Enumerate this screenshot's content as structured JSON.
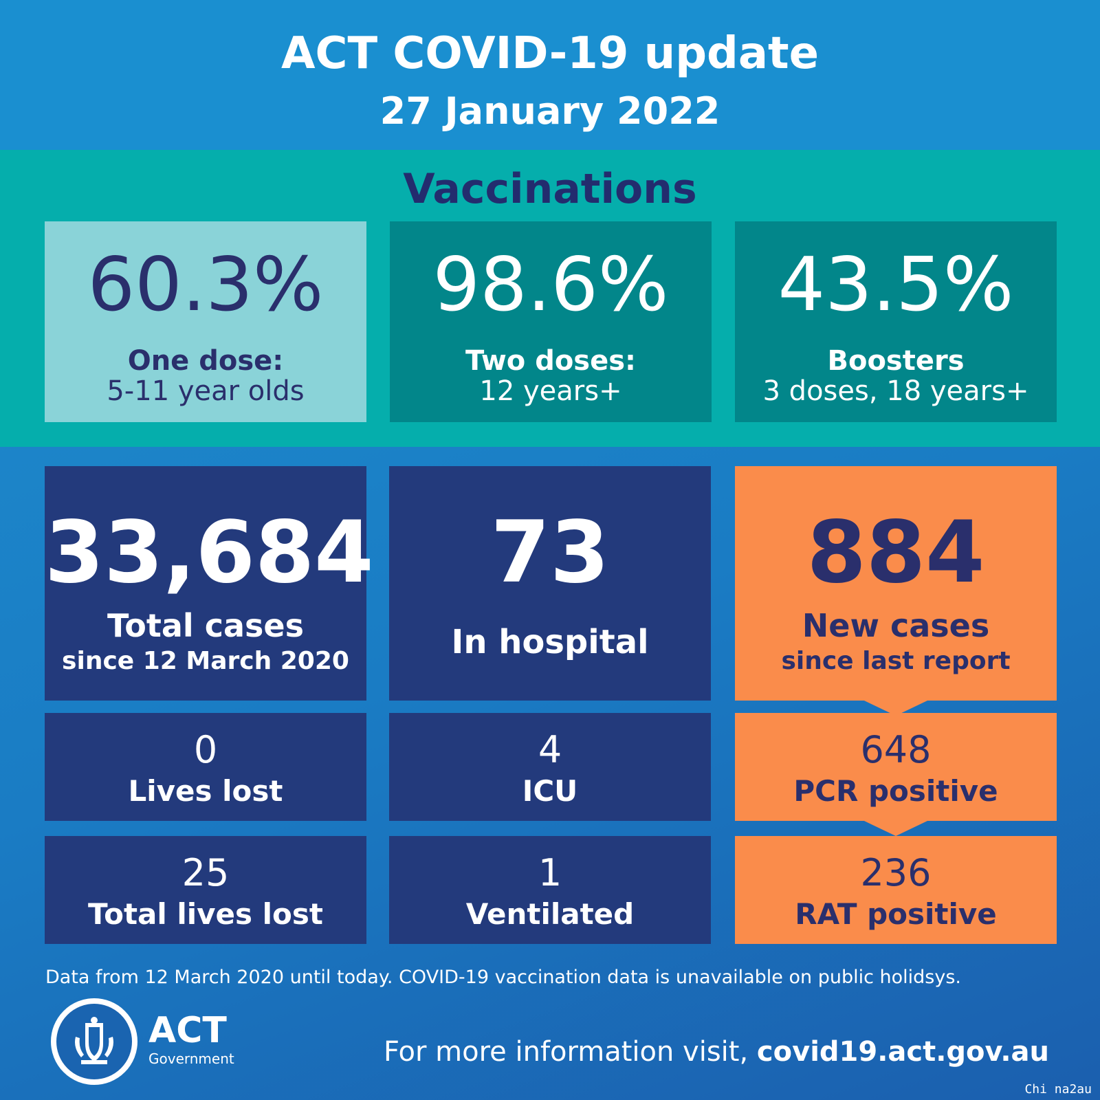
{
  "header": {
    "title": "ACT COVID-19 update",
    "date": "27 January 2022"
  },
  "vaccinations": {
    "heading": "Vaccinations",
    "cards": [
      {
        "value": "60.3%",
        "line1": "One dose:",
        "line2": "5-11 year olds"
      },
      {
        "value": "98.6%",
        "line1": "Two doses:",
        "line2": "12 years+"
      },
      {
        "value": "43.5%",
        "line1": "Boosters",
        "line2": "3 doses, 18 years+"
      }
    ]
  },
  "stats": {
    "total_cases": {
      "value": "33,684",
      "line1": "Total cases",
      "line2": "since 12 March 2020"
    },
    "in_hospital": {
      "value": "73",
      "label": "In hospital"
    },
    "new_cases": {
      "value": "884",
      "line1": "New cases",
      "line2": "since last report"
    },
    "lives_lost": {
      "value": "0",
      "label": "Lives lost"
    },
    "icu": {
      "value": "4",
      "label": "ICU"
    },
    "pcr_positive": {
      "value": "648",
      "label": "PCR positive"
    },
    "total_lives_lost": {
      "value": "25",
      "label": "Total lives lost"
    },
    "ventilated": {
      "value": "1",
      "label": "Ventilated"
    },
    "rat_positive": {
      "value": "236",
      "label": "RAT positive"
    }
  },
  "footer": {
    "note": "Data from 12 March 2020 until today.  COVID-19 vaccination data is unavailable on public holidsys.",
    "logo_title": "ACT",
    "logo_subtitle": "Government",
    "more_info": "For more information visit,",
    "url": "covid19.act.gov.au",
    "watermark": "Chi na2au"
  },
  "colors": {
    "header_blue": "#1a8fd0",
    "vaccination_teal": "#05aeac",
    "card_light_teal": "#8ad3d8",
    "card_dark_teal": "#02868a",
    "navy": "#233a7c",
    "orange": "#fa8c4b",
    "text_navy": "#2a2f6c"
  },
  "icons": [
    "act-government-crest-icon"
  ]
}
